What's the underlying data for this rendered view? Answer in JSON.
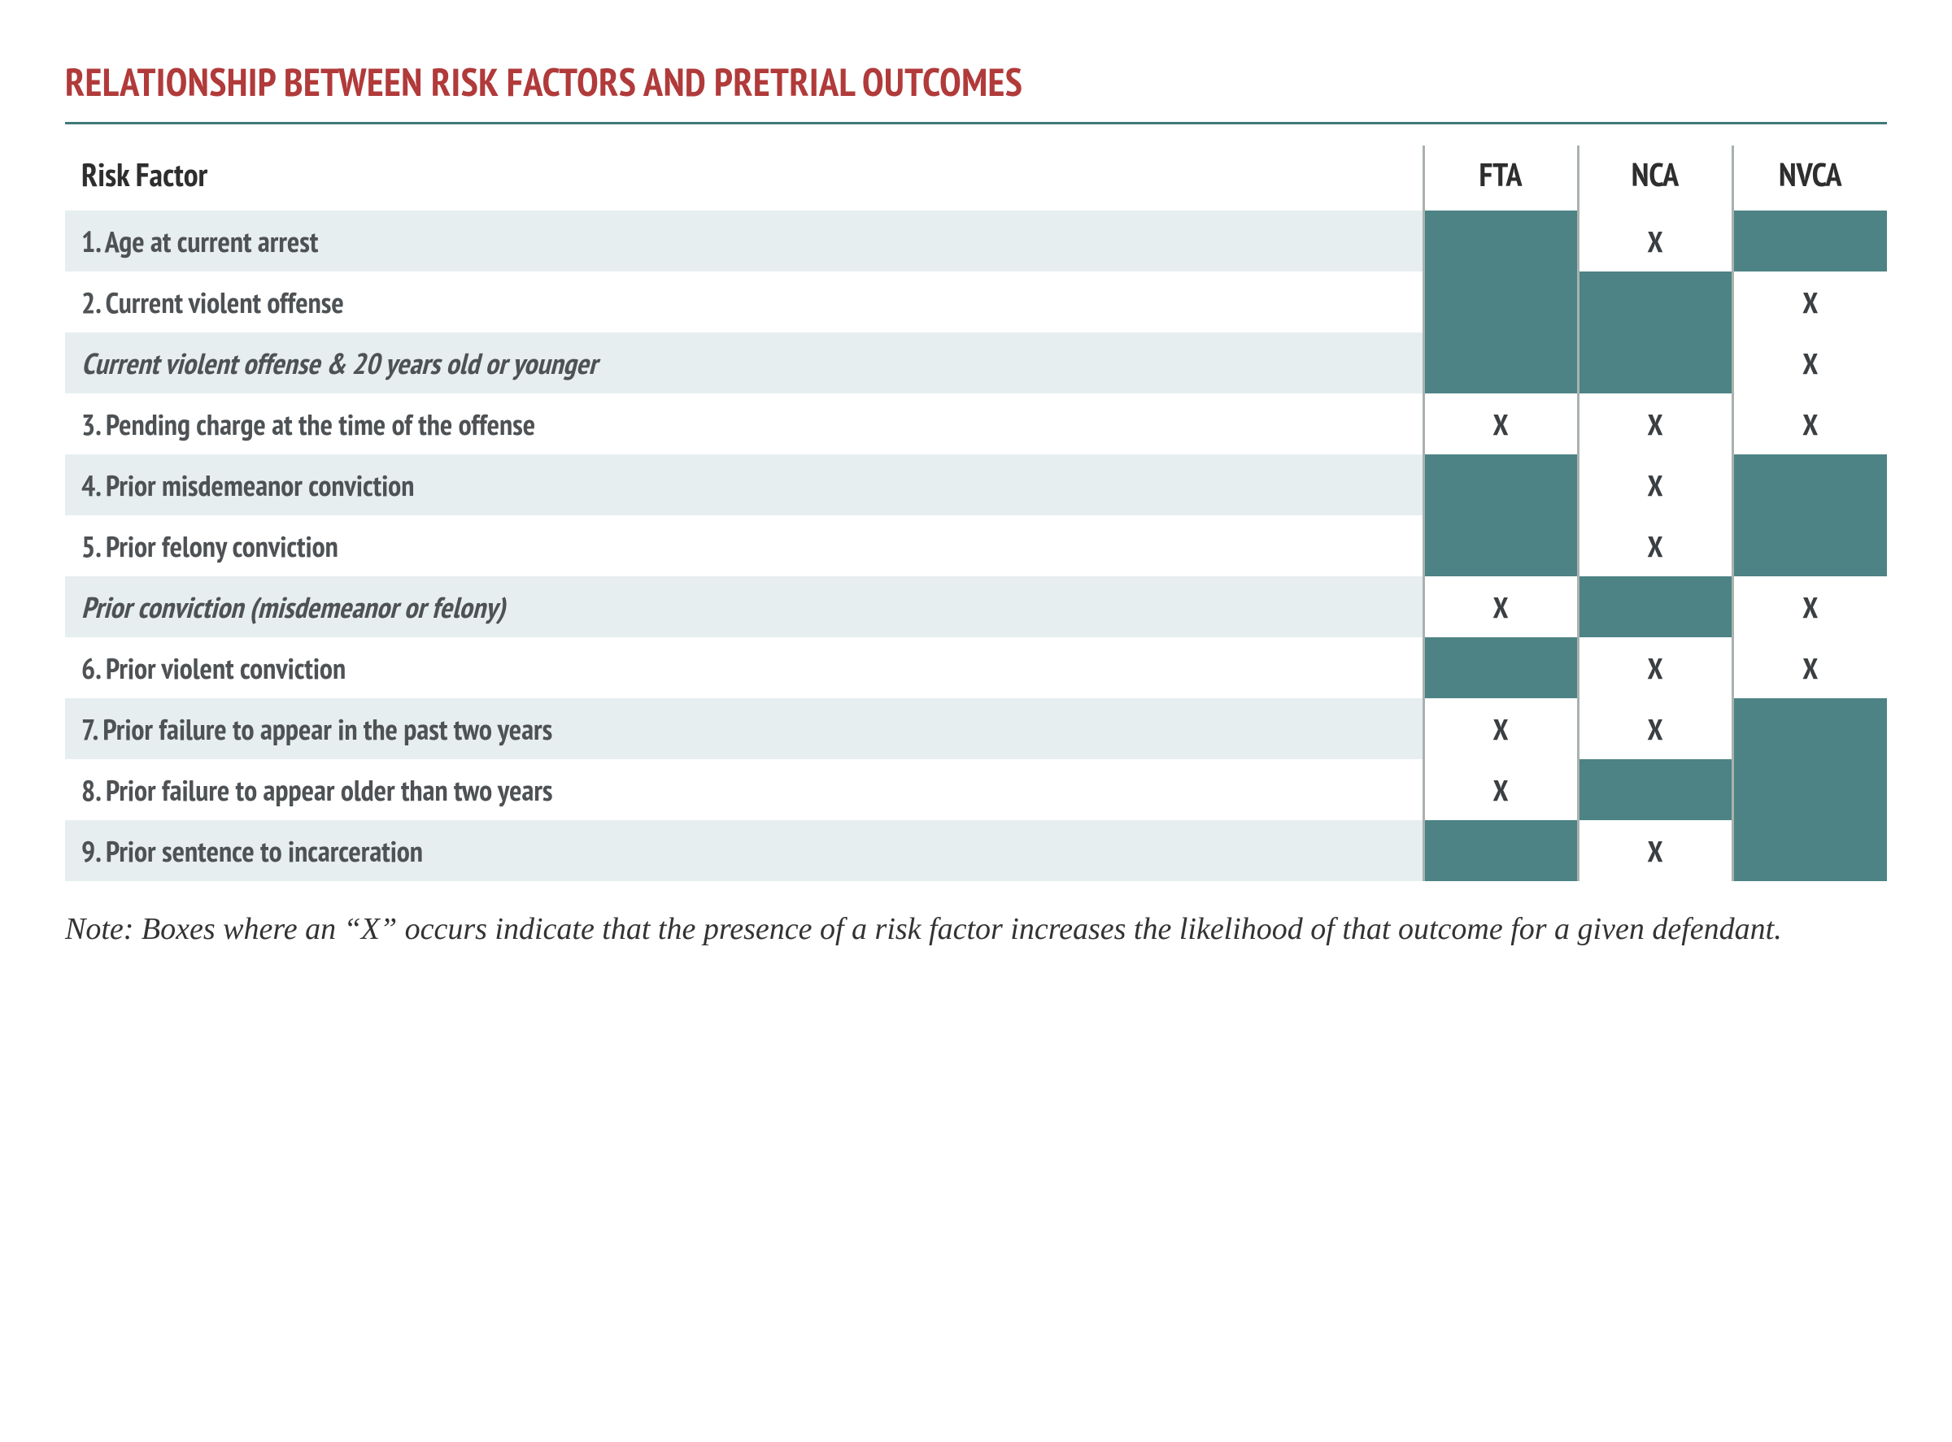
{
  "colors": {
    "title": "#b13a3a",
    "rule": "#3f7a7a",
    "header_text": "#2e2e2e",
    "row_text": "#4e5255",
    "row_bg_light": "#e7eef0",
    "row_bg_white": "#ffffff",
    "fill_dark": "#4d8385",
    "col_separator": "#a9b2ad",
    "note_text": "#333333",
    "x_text": "#3b3f42"
  },
  "title": "RELATIONSHIP BETWEEN RISK FACTORS AND PRETRIAL OUTCOMES",
  "columns": {
    "label_header": "Risk Factor",
    "outcomes": [
      "FTA",
      "NCA",
      "NVCA"
    ]
  },
  "mark": "X",
  "rows": [
    {
      "label": "1. Age at current arrest",
      "italic": false,
      "bg": "light",
      "fta": false,
      "nca": true,
      "nvca": false
    },
    {
      "label": "2. Current violent offense",
      "italic": false,
      "bg": "white",
      "fta": false,
      "nca": false,
      "nvca": true
    },
    {
      "label": "Current violent offense & 20 years old or younger",
      "italic": true,
      "bg": "light",
      "fta": false,
      "nca": false,
      "nvca": true
    },
    {
      "label": "3. Pending charge at the time of the offense",
      "italic": false,
      "bg": "white",
      "fta": true,
      "nca": true,
      "nvca": true
    },
    {
      "label": "4. Prior misdemeanor conviction",
      "italic": false,
      "bg": "light",
      "fta": false,
      "nca": true,
      "nvca": false
    },
    {
      "label": "5. Prior felony conviction",
      "italic": false,
      "bg": "white",
      "fta": false,
      "nca": true,
      "nvca": false
    },
    {
      "label": "Prior conviction (misdemeanor or felony)",
      "italic": true,
      "bg": "light",
      "fta": true,
      "nca": false,
      "nvca": true
    },
    {
      "label": "6. Prior violent conviction",
      "italic": false,
      "bg": "white",
      "fta": false,
      "nca": true,
      "nvca": true
    },
    {
      "label": "7. Prior failure to appear in the past two years",
      "italic": false,
      "bg": "light",
      "fta": true,
      "nca": true,
      "nvca": false
    },
    {
      "label": "8. Prior failure to appear older than two years",
      "italic": false,
      "bg": "white",
      "fta": true,
      "nca": false,
      "nvca": false
    },
    {
      "label": "9. Prior sentence to incarceration",
      "italic": false,
      "bg": "light",
      "fta": false,
      "nca": true,
      "nvca": false
    }
  ],
  "note": "Note: Boxes where an “X” occurs indicate that the presence of a risk factor increases the likelihood of that outcome for a given defendant."
}
